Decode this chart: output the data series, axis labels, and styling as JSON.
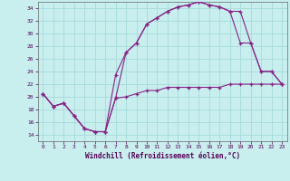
{
  "xlabel": "Windchill (Refroidissement éolien,°C)",
  "xlim": [
    -0.5,
    23.5
  ],
  "ylim": [
    13,
    35
  ],
  "xticks": [
    0,
    1,
    2,
    3,
    4,
    5,
    6,
    7,
    8,
    9,
    10,
    11,
    12,
    13,
    14,
    15,
    16,
    17,
    18,
    19,
    20,
    21,
    22,
    23
  ],
  "yticks": [
    14,
    16,
    18,
    20,
    22,
    24,
    26,
    28,
    30,
    32,
    34
  ],
  "bg_color": "#c8eeee",
  "line_color": "#882288",
  "grid_color": "#aadddd",
  "line1_x": [
    0,
    1,
    2,
    3,
    4,
    5,
    6,
    7,
    8,
    9,
    10,
    11,
    12,
    13,
    14,
    15,
    16,
    17,
    18,
    19,
    20,
    21,
    22,
    23
  ],
  "line1_y": [
    20.5,
    18.5,
    19.0,
    17.0,
    15.0,
    14.5,
    14.5,
    19.8,
    20.0,
    20.5,
    21.0,
    21.0,
    21.5,
    21.5,
    21.5,
    21.5,
    21.5,
    21.5,
    22.0,
    22.0,
    22.0,
    22.0,
    22.0,
    22.0
  ],
  "line2_x": [
    0,
    1,
    2,
    3,
    4,
    5,
    6,
    7,
    8,
    9,
    10,
    11,
    12,
    13,
    14,
    15,
    16,
    17,
    18,
    19,
    20,
    21,
    22,
    23
  ],
  "line2_y": [
    20.5,
    18.5,
    19.0,
    17.0,
    15.0,
    14.5,
    14.5,
    19.8,
    27.0,
    28.5,
    31.5,
    32.5,
    33.5,
    34.2,
    34.5,
    35.0,
    34.5,
    34.2,
    33.5,
    33.5,
    28.5,
    24.0,
    24.0,
    22.0
  ],
  "line3_x": [
    0,
    1,
    2,
    3,
    4,
    5,
    6,
    7,
    8,
    9,
    10,
    11,
    12,
    13,
    14,
    15,
    16,
    17,
    18,
    19,
    20,
    21,
    22,
    23
  ],
  "line3_y": [
    20.5,
    18.5,
    19.0,
    17.0,
    15.0,
    14.5,
    14.5,
    23.5,
    27.0,
    28.5,
    31.5,
    32.5,
    33.5,
    34.2,
    34.5,
    35.0,
    34.5,
    34.2,
    33.5,
    28.5,
    28.5,
    24.0,
    24.0,
    22.0
  ]
}
